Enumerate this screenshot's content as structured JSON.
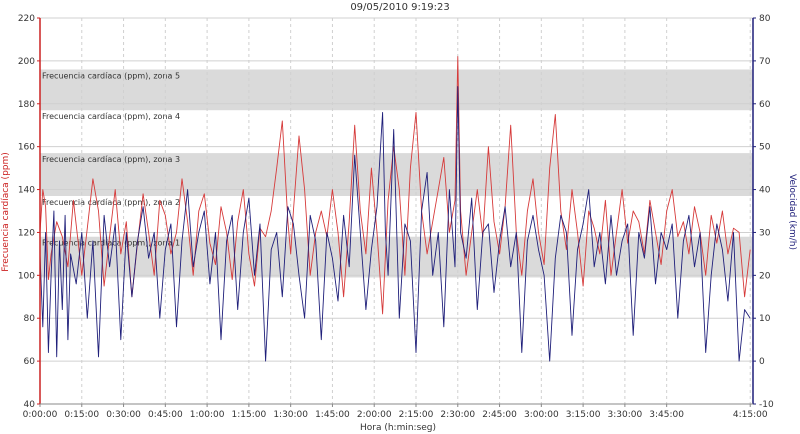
{
  "chart_data": {
    "type": "line",
    "title": "09/05/2010 9:19:23",
    "xlabel": "Hora (h:min:seg)",
    "ylabel_left": "Frecuencia cardíaca (ppm)",
    "ylabel_right": "Velocidad (km/h)",
    "x_ticks": [
      "0:00:00",
      "0:15:00",
      "0:30:00",
      "0:45:00",
      "1:00:00",
      "1:15:00",
      "1:30:00",
      "1:45:00",
      "2:00:00",
      "2:15:00",
      "2:30:00",
      "2:45:00",
      "3:00:00",
      "3:15:00",
      "3:30:00",
      "3:45:00",
      "4:15:00"
    ],
    "x_tick_minutes": [
      0,
      15,
      30,
      45,
      60,
      75,
      90,
      105,
      120,
      135,
      150,
      165,
      180,
      195,
      210,
      225,
      255
    ],
    "xlim_minutes": [
      0,
      256
    ],
    "ylim_left": [
      40,
      220
    ],
    "yticks_left": [
      40,
      60,
      80,
      100,
      120,
      140,
      160,
      180,
      200,
      220
    ],
    "ylim_right": [
      -10,
      80
    ],
    "yticks_right": [
      -10,
      0,
      10,
      20,
      30,
      40,
      50,
      60,
      70,
      80
    ],
    "grid": true,
    "colors": {
      "heart_rate": "#d63a3a",
      "speed": "#1f1f7a",
      "left_axis": "#cc2222",
      "right_axis": "#1f1f7a",
      "zone_band": "#dadada"
    },
    "zones": [
      {
        "label": "Frecuencia cardíaca (ppm), zona 1",
        "min": 99,
        "max": 118,
        "shaded": true
      },
      {
        "label": "Frecuencia cardíaca (ppm), zona 2",
        "min": 118,
        "max": 137,
        "shaded": false
      },
      {
        "label": "Frecuencia cardíaca (ppm), zona 3",
        "min": 137,
        "max": 157,
        "shaded": true
      },
      {
        "label": "Frecuencia cardíaca (ppm), zona 4",
        "min": 157,
        "max": 177,
        "shaded": false
      },
      {
        "label": "Frecuencia cardíaca (ppm), zona 5",
        "min": 177,
        "max": 196,
        "shaded": true
      }
    ],
    "series": [
      {
        "key": "heart_rate",
        "axis": "left",
        "x_minutes": [
          0,
          1,
          2,
          3,
          4,
          6,
          8,
          10,
          12,
          14,
          15,
          17,
          19,
          21,
          23,
          25,
          27,
          29,
          31,
          33,
          35,
          37,
          39,
          41,
          43,
          45,
          47,
          49,
          51,
          53,
          55,
          57,
          59,
          61,
          63,
          65,
          67,
          69,
          71,
          73,
          75,
          77,
          79,
          81,
          83,
          85,
          87,
          89,
          90,
          91,
          93,
          95,
          97,
          99,
          101,
          103,
          105,
          107,
          109,
          111,
          113,
          115,
          117,
          119,
          121,
          123,
          125,
          127,
          129,
          131,
          133,
          135,
          137,
          139,
          141,
          143,
          145,
          147,
          149,
          150,
          151,
          153,
          155,
          157,
          159,
          161,
          163,
          165,
          167,
          169,
          171,
          173,
          175,
          177,
          179,
          181,
          183,
          185,
          187,
          189,
          191,
          193,
          195,
          197,
          199,
          201,
          203,
          205,
          207,
          209,
          211,
          213,
          215,
          217,
          219,
          221,
          223,
          225,
          227,
          229,
          231,
          233,
          235,
          237,
          239,
          241,
          243,
          245,
          247,
          249,
          251,
          253,
          255
        ],
        "values": [
          120,
          140,
          132,
          98,
          110,
          125,
          118,
          104,
          135,
          112,
          100,
          122,
          145,
          130,
          95,
          118,
          140,
          110,
          125,
          90,
          115,
          138,
          120,
          100,
          135,
          128,
          110,
          120,
          145,
          125,
          100,
          130,
          138,
          115,
          105,
          132,
          120,
          98,
          125,
          140,
          110,
          95,
          122,
          118,
          130,
          150,
          172,
          125,
          110,
          130,
          165,
          140,
          100,
          120,
          130,
          118,
          140,
          120,
          90,
          125,
          170,
          130,
          110,
          150,
          120,
          82,
          135,
          160,
          140,
          100,
          150,
          176,
          130,
          110,
          125,
          140,
          155,
          120,
          135,
          202,
          130,
          100,
          120,
          140,
          118,
          160,
          125,
          110,
          132,
          170,
          120,
          100,
          130,
          145,
          120,
          105,
          150,
          175,
          130,
          112,
          140,
          120,
          95,
          130,
          122,
          110,
          135,
          100,
          120,
          140,
          115,
          130,
          125,
          110,
          135,
          120,
          105,
          130,
          140,
          118,
          125,
          110,
          132,
          120,
          100,
          128,
          115,
          130,
          110,
          122,
          120,
          90,
          112
        ]
      },
      {
        "key": "speed",
        "axis": "right",
        "x_minutes": [
          0,
          1,
          2,
          3,
          4,
          5,
          6,
          7,
          8,
          9,
          10,
          11,
          13,
          15,
          17,
          19,
          21,
          23,
          25,
          27,
          29,
          31,
          33,
          35,
          37,
          39,
          41,
          43,
          45,
          47,
          49,
          51,
          53,
          55,
          57,
          59,
          61,
          63,
          65,
          67,
          69,
          71,
          73,
          75,
          77,
          79,
          81,
          83,
          85,
          87,
          89,
          91,
          93,
          95,
          97,
          99,
          101,
          103,
          105,
          107,
          109,
          111,
          113,
          115,
          117,
          119,
          121,
          123,
          124,
          125,
          127,
          129,
          131,
          133,
          135,
          137,
          139,
          141,
          143,
          145,
          147,
          149,
          150,
          151,
          153,
          155,
          157,
          159,
          161,
          163,
          165,
          167,
          169,
          171,
          173,
          175,
          177,
          179,
          181,
          183,
          185,
          187,
          189,
          191,
          193,
          195,
          197,
          199,
          201,
          203,
          205,
          207,
          209,
          211,
          213,
          215,
          217,
          219,
          221,
          223,
          225,
          227,
          229,
          231,
          233,
          235,
          237,
          239,
          241,
          243,
          245,
          247,
          249,
          251,
          253,
          255
        ],
        "values": [
          25,
          8,
          30,
          2,
          20,
          35,
          1,
          28,
          12,
          34,
          5,
          25,
          18,
          30,
          10,
          28,
          1,
          34,
          22,
          32,
          5,
          30,
          15,
          28,
          36,
          24,
          30,
          10,
          26,
          32,
          8,
          28,
          40,
          22,
          30,
          35,
          18,
          30,
          5,
          28,
          34,
          12,
          30,
          38,
          20,
          32,
          0,
          26,
          30,
          15,
          36,
          32,
          20,
          10,
          34,
          28,
          5,
          30,
          24,
          14,
          34,
          22,
          48,
          30,
          12,
          26,
          36,
          58,
          30,
          20,
          54,
          10,
          32,
          28,
          2,
          35,
          44,
          20,
          30,
          8,
          40,
          22,
          64,
          30,
          24,
          38,
          12,
          30,
          32,
          16,
          28,
          36,
          22,
          30,
          2,
          28,
          34,
          26,
          20,
          0,
          24,
          34,
          30,
          6,
          26,
          32,
          40,
          22,
          30,
          18,
          34,
          20,
          28,
          32,
          6,
          30,
          24,
          36,
          18,
          30,
          26,
          32,
          10,
          28,
          34,
          22,
          30,
          2,
          20,
          32,
          26,
          14,
          30,
          0,
          12,
          10
        ]
      }
    ]
  }
}
